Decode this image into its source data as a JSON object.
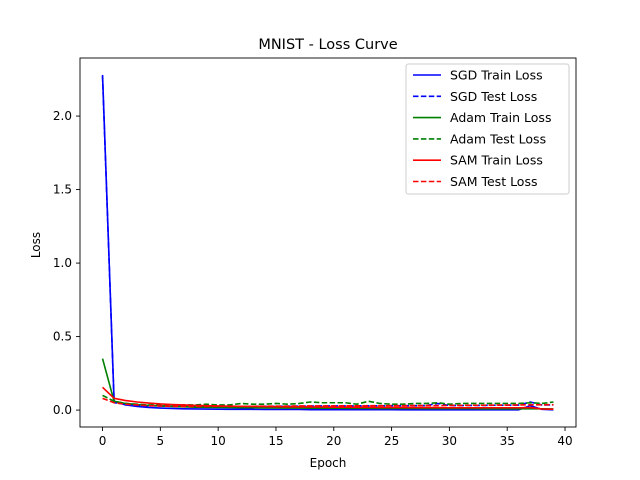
{
  "chart_data": {
    "type": "line",
    "title": "MNIST - Loss Curve",
    "xlabel": "Epoch",
    "ylabel": "Loss",
    "xlim": [
      -1.95,
      40.95
    ],
    "ylim": [
      -0.115,
      2.395
    ],
    "xticks": [
      0,
      5,
      10,
      15,
      20,
      25,
      30,
      35,
      40
    ],
    "yticks": [
      0.0,
      0.5,
      1.0,
      1.5,
      2.0
    ],
    "ytick_labels": [
      "0.0",
      "0.5",
      "1.0",
      "1.5",
      "2.0"
    ],
    "grid": false,
    "legend_position": "top-right",
    "x": [
      0,
      1,
      2,
      3,
      4,
      5,
      6,
      7,
      8,
      9,
      10,
      11,
      12,
      13,
      14,
      15,
      16,
      17,
      18,
      19,
      20,
      21,
      22,
      23,
      24,
      25,
      26,
      27,
      28,
      29,
      30,
      31,
      32,
      33,
      34,
      35,
      36,
      37,
      38,
      39
    ],
    "series": [
      {
        "name": "SGD Train Loss",
        "color": "#0000ff",
        "dash": "solid",
        "values": [
          2.28,
          0.06,
          0.035,
          0.025,
          0.018,
          0.014,
          0.011,
          0.009,
          0.008,
          0.007,
          0.006,
          0.005,
          0.005,
          0.005,
          0.004,
          0.004,
          0.004,
          0.004,
          0.003,
          0.003,
          0.003,
          0.003,
          0.003,
          0.003,
          0.003,
          0.003,
          0.002,
          0.002,
          0.002,
          0.002,
          0.002,
          0.002,
          0.002,
          0.002,
          0.002,
          0.002,
          0.002,
          0.03,
          0.005,
          0.002
        ]
      },
      {
        "name": "SGD Test Loss",
        "color": "#0000ff",
        "dash": "dashed",
        "values": [
          2.27,
          0.05,
          0.04,
          0.033,
          0.03,
          0.028,
          0.027,
          0.026,
          0.026,
          0.026,
          0.025,
          0.025,
          0.025,
          0.026,
          0.026,
          0.026,
          0.027,
          0.027,
          0.027,
          0.028,
          0.028,
          0.028,
          0.029,
          0.029,
          0.029,
          0.03,
          0.03,
          0.03,
          0.031,
          0.045,
          0.031,
          0.031,
          0.032,
          0.032,
          0.033,
          0.033,
          0.034,
          0.055,
          0.035,
          0.035
        ]
      },
      {
        "name": "Adam Train Loss",
        "color": "#008000",
        "dash": "solid",
        "values": [
          0.35,
          0.06,
          0.045,
          0.038,
          0.032,
          0.028,
          0.025,
          0.022,
          0.02,
          0.019,
          0.018,
          0.017,
          0.016,
          0.016,
          0.015,
          0.015,
          0.014,
          0.014,
          0.013,
          0.013,
          0.013,
          0.012,
          0.012,
          0.012,
          0.011,
          0.011,
          0.011,
          0.011,
          0.01,
          0.01,
          0.01,
          0.01,
          0.01,
          0.009,
          0.009,
          0.009,
          0.009,
          0.009,
          0.009,
          0.008
        ]
      },
      {
        "name": "Adam Test Loss",
        "color": "#008000",
        "dash": "dashed",
        "values": [
          0.1,
          0.06,
          0.045,
          0.04,
          0.035,
          0.035,
          0.033,
          0.035,
          0.035,
          0.04,
          0.035,
          0.035,
          0.045,
          0.04,
          0.04,
          0.045,
          0.04,
          0.045,
          0.055,
          0.05,
          0.05,
          0.05,
          0.04,
          0.06,
          0.045,
          0.04,
          0.04,
          0.045,
          0.045,
          0.05,
          0.04,
          0.045,
          0.045,
          0.045,
          0.045,
          0.045,
          0.045,
          0.05,
          0.045,
          0.055
        ]
      },
      {
        "name": "SAM Train Loss",
        "color": "#ff0000",
        "dash": "solid",
        "values": [
          0.155,
          0.08,
          0.065,
          0.055,
          0.048,
          0.042,
          0.038,
          0.035,
          0.032,
          0.03,
          0.028,
          0.027,
          0.026,
          0.025,
          0.024,
          0.023,
          0.022,
          0.022,
          0.021,
          0.021,
          0.02,
          0.02,
          0.019,
          0.019,
          0.018,
          0.018,
          0.018,
          0.017,
          0.017,
          0.017,
          0.016,
          0.016,
          0.016,
          0.016,
          0.016,
          0.016,
          0.016,
          0.017,
          0.008,
          0.006
        ]
      },
      {
        "name": "SAM Test Loss",
        "color": "#ff0000",
        "dash": "dashed",
        "values": [
          0.08,
          0.05,
          0.04,
          0.035,
          0.03,
          0.028,
          0.026,
          0.025,
          0.025,
          0.025,
          0.026,
          0.025,
          0.026,
          0.026,
          0.027,
          0.027,
          0.027,
          0.028,
          0.028,
          0.028,
          0.028,
          0.029,
          0.029,
          0.03,
          0.03,
          0.03,
          0.03,
          0.031,
          0.031,
          0.031,
          0.032,
          0.032,
          0.033,
          0.033,
          0.034,
          0.034,
          0.035,
          0.036,
          0.036,
          0.037
        ]
      }
    ]
  }
}
